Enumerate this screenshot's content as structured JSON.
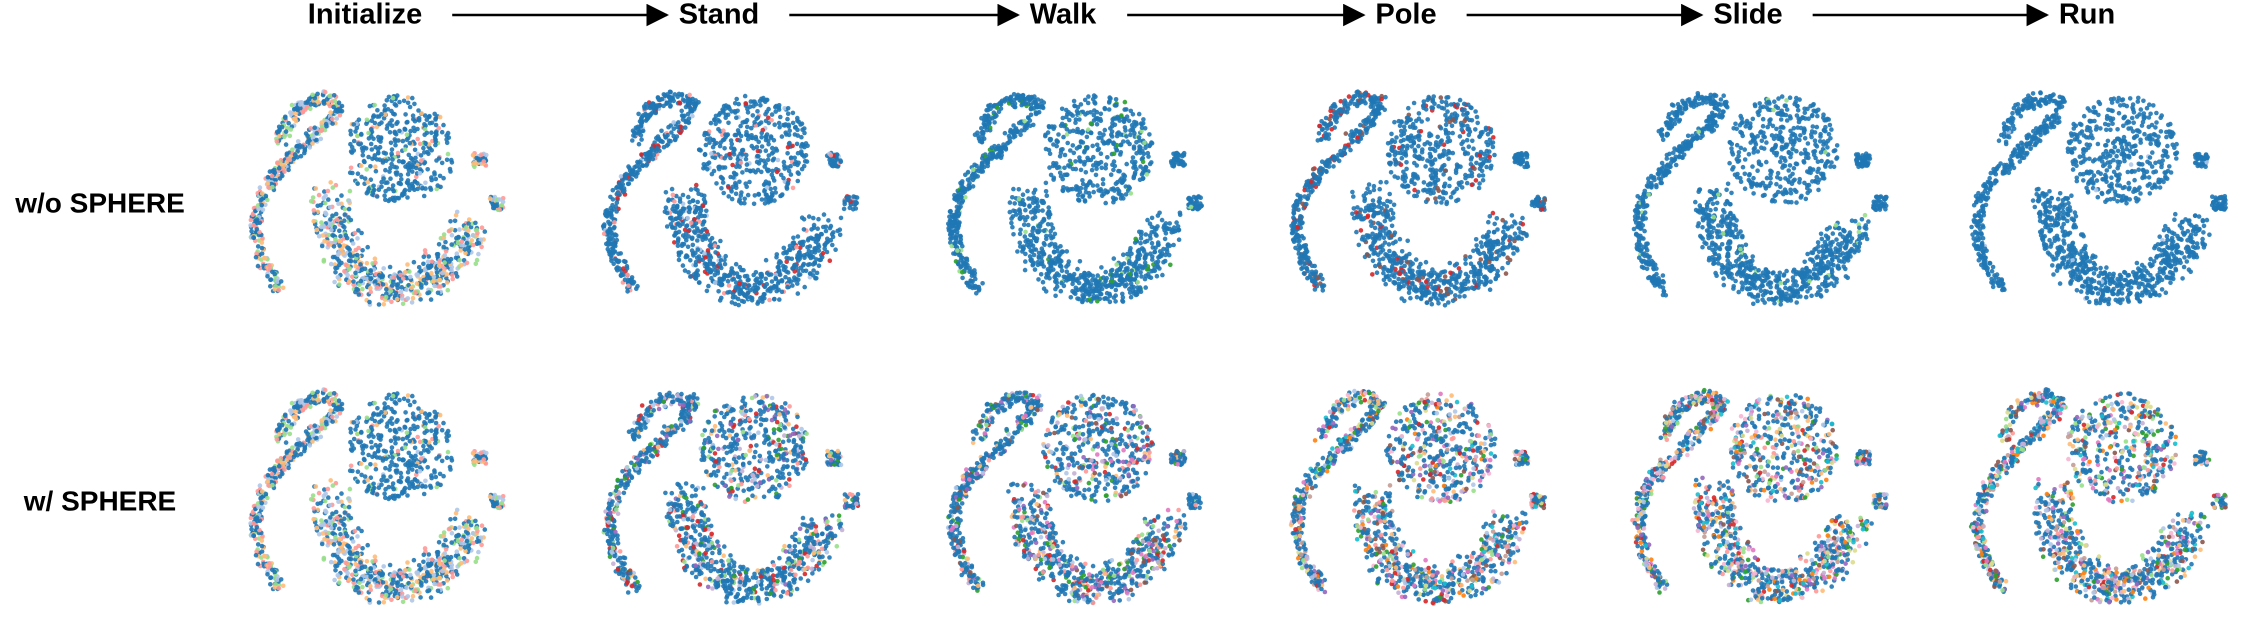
{
  "header": {
    "stages": [
      "Initialize",
      "Stand",
      "Walk",
      "Pole",
      "Slide",
      "Run"
    ]
  },
  "rows": [
    {
      "label": "w/o SPHERE"
    },
    {
      "label": "w/ SPHERE"
    }
  ]
}
